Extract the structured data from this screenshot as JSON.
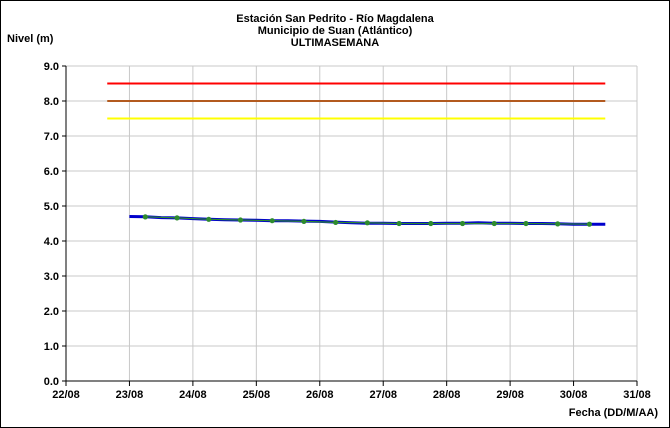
{
  "chart_data": {
    "type": "line",
    "title_lines": [
      "Estación San Pedrito - Río Magdalena",
      "Municipio de Suan (Atlántico)",
      "ULTIMASEMANA"
    ],
    "ylabel": "Nivel (m)",
    "xlabel": "Fecha (DD/M/AA)",
    "ylim": [
      0,
      9
    ],
    "yticks": [
      "0.0",
      "1.0",
      "2.0",
      "3.0",
      "4.0",
      "5.0",
      "6.0",
      "7.0",
      "8.0",
      "9.0"
    ],
    "xlim": [
      22,
      31
    ],
    "xticks": [
      "22/08",
      "23/08",
      "24/08",
      "25/08",
      "26/08",
      "27/08",
      "28/08",
      "29/08",
      "30/08",
      "31/08"
    ],
    "grid": true,
    "thresholds": [
      {
        "value": 8.5,
        "color": "#ff0000",
        "x": [
          22.65,
          30.5
        ]
      },
      {
        "value": 8.0,
        "color": "#b35a1f",
        "x": [
          22.65,
          30.5
        ]
      },
      {
        "value": 7.5,
        "color": "#ffff00",
        "x": [
          22.65,
          30.5
        ]
      }
    ],
    "series": [
      {
        "color": "#0000cc",
        "x": [
          23.0,
          23.25,
          23.5,
          23.75,
          24.0,
          24.25,
          24.5,
          24.75,
          25.0,
          25.25,
          25.5,
          25.75,
          26.0,
          26.25,
          26.5,
          26.75,
          27.0,
          27.25,
          27.5,
          27.75,
          28.0,
          28.25,
          28.5,
          28.75,
          29.0,
          29.25,
          29.5,
          29.75,
          30.0,
          30.25,
          30.5
        ],
        "values": [
          4.7,
          4.69,
          4.67,
          4.66,
          4.64,
          4.62,
          4.61,
          4.6,
          4.59,
          4.58,
          4.58,
          4.57,
          4.56,
          4.54,
          4.52,
          4.51,
          4.51,
          4.5,
          4.5,
          4.5,
          4.51,
          4.51,
          4.52,
          4.51,
          4.51,
          4.5,
          4.5,
          4.49,
          4.48,
          4.48,
          4.48
        ]
      },
      {
        "color": "#2e8b2e",
        "markers": true,
        "x": [
          23.25,
          23.75,
          24.25,
          24.75,
          25.25,
          25.75,
          26.25,
          26.75,
          27.25,
          27.75,
          28.25,
          28.75,
          29.25,
          29.75,
          30.25
        ],
        "values": [
          4.69,
          4.66,
          4.62,
          4.6,
          4.58,
          4.56,
          4.53,
          4.52,
          4.5,
          4.5,
          4.5,
          4.5,
          4.5,
          4.49,
          4.48
        ]
      }
    ]
  }
}
